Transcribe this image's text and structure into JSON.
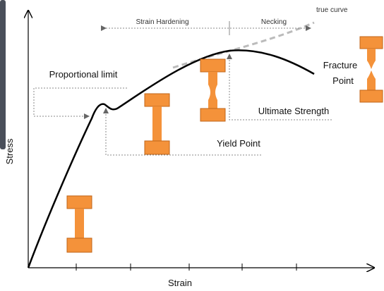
{
  "axes": {
    "y_label": "Stress",
    "x_label": "Strain"
  },
  "annotations": {
    "true_curve": "true curve",
    "strain_hardening": "Strain Hardening",
    "necking": "Necking",
    "proportional_limit": "Proportional limit",
    "yield_point": "Yield Point",
    "ultimate_strength": "Ultimate Strength",
    "fracture_point": [
      "Fracture",
      "Point"
    ]
  }
}
